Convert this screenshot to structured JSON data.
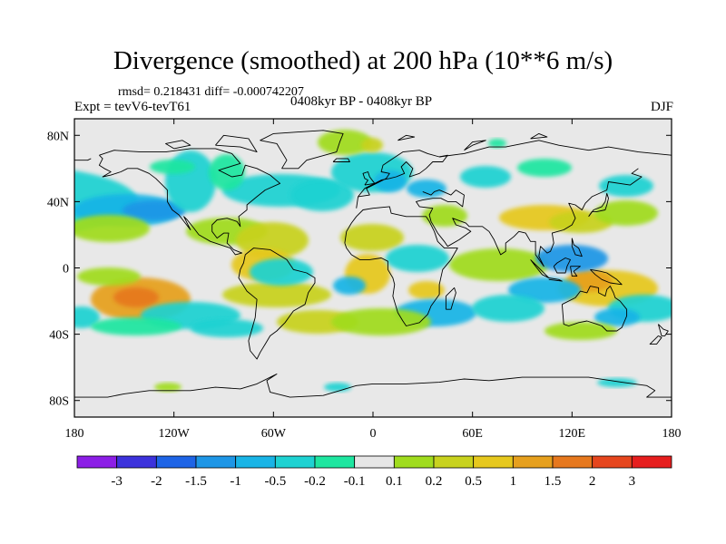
{
  "header": {
    "title": "Divergence (smoothed) at 200 hPa (10**6 m/s)",
    "stats": "rmsd= 0.218431 diff= -0.000742207",
    "expt": "Expt = tevV6-tevT61",
    "period": "0408kyr BP - 0408kyr BP",
    "season": "DJF"
  },
  "map": {
    "projection": "cylindrical-equidistant",
    "lon_range": [
      -180,
      180
    ],
    "lat_range": [
      -90,
      90
    ],
    "lon_ticks": [
      {
        "value": -180,
        "label": "180"
      },
      {
        "value": -120,
        "label": "120W"
      },
      {
        "value": -60,
        "label": "60W"
      },
      {
        "value": 0,
        "label": "0"
      },
      {
        "value": 60,
        "label": "60E"
      },
      {
        "value": 120,
        "label": "120E"
      },
      {
        "value": 180,
        "label": "180"
      }
    ],
    "lat_ticks": [
      {
        "value": 80,
        "label": "80N"
      },
      {
        "value": 40,
        "label": "40N"
      },
      {
        "value": 0,
        "label": "0"
      },
      {
        "value": -40,
        "label": "40S"
      },
      {
        "value": -80,
        "label": "80S"
      }
    ],
    "background_color": "#e8e8e8",
    "coastline_color": "#000000"
  },
  "colorbar": {
    "colors": [
      "#8c1ee6",
      "#3c32dc",
      "#1e64e6",
      "#1e96e6",
      "#19b4e6",
      "#1ed2d2",
      "#1ee6a0",
      "#e6e6e6",
      "#a0dc1e",
      "#c8d21e",
      "#e6c81e",
      "#e6a01e",
      "#e6781e",
      "#e6461e",
      "#e61e1e"
    ],
    "labels": [
      "-3",
      "-2",
      "-1.5",
      "-1",
      "-0.5",
      "-0.2",
      "-0.1",
      "0.1",
      "0.2",
      "0.5",
      "1",
      "1.5",
      "2",
      "3"
    ]
  }
}
